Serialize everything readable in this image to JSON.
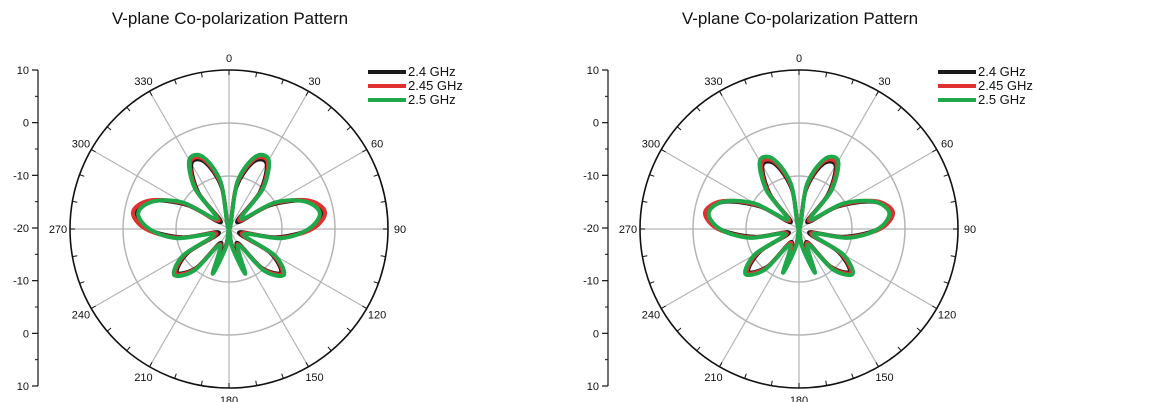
{
  "chart_data": [
    {
      "type": "polar-line",
      "title": "V-plane Co-polarization Pattern",
      "angle_ticks": [
        "0",
        "30",
        "60",
        "90",
        "120",
        "150",
        "180",
        "210",
        "240",
        "270",
        "300",
        "330"
      ],
      "radial_tick_labels": [
        "10",
        "0",
        "-10",
        "-20",
        "-10",
        "0",
        "10"
      ],
      "radial_range_db": [
        -20,
        10
      ],
      "grid": true,
      "legend_position": "top-right",
      "colors": {
        "2.4 GHz": "#1a1a1a",
        "2.45 GHz": "#e03030",
        "2.5 GHz": "#1fa84a"
      },
      "series": [
        {
          "name": "2.4 GHz",
          "angles": [
            0,
            10,
            20,
            30,
            40,
            50,
            60,
            70,
            80,
            90,
            100,
            110,
            120,
            130,
            140,
            150,
            160,
            170,
            180,
            190,
            200,
            210,
            220,
            230,
            240,
            250,
            260,
            270,
            280,
            290,
            300,
            310,
            320,
            330,
            340,
            350
          ],
          "gain_db": [
            -20,
            -12,
            -6.5,
            -5.8,
            -11,
            -18,
            -11,
            -4.5,
            -2,
            -4.6,
            -11,
            -18,
            -11,
            -7.2,
            -10.5,
            -17,
            -11.5,
            -17,
            -20,
            -17,
            -11.5,
            -17,
            -10.5,
            -7.2,
            -11,
            -18,
            -11,
            -4.6,
            -2,
            -4.5,
            -11,
            -18,
            -11,
            -5.8,
            -6.5,
            -12
          ]
        },
        {
          "name": "2.45 GHz",
          "angles": [
            0,
            10,
            20,
            30,
            40,
            50,
            60,
            70,
            80,
            90,
            100,
            110,
            120,
            130,
            140,
            150,
            160,
            170,
            180,
            190,
            200,
            210,
            220,
            230,
            240,
            250,
            260,
            270,
            280,
            290,
            300,
            310,
            320,
            330,
            340,
            350
          ],
          "gain_db": [
            -20,
            -11.5,
            -6,
            -5.4,
            -10.5,
            -17.5,
            -10.5,
            -4.2,
            -1.6,
            -4.3,
            -10.5,
            -17.5,
            -10.5,
            -6.9,
            -10.2,
            -16.7,
            -11.2,
            -16.7,
            -20,
            -16.7,
            -11.2,
            -16.7,
            -10.2,
            -6.9,
            -10.5,
            -17.5,
            -10.5,
            -4.3,
            -1.6,
            -4.2,
            -10.5,
            -17.5,
            -10.5,
            -5.4,
            -6,
            -11.5
          ]
        },
        {
          "name": "2.5 GHz",
          "angles": [
            0,
            10,
            20,
            30,
            40,
            50,
            60,
            70,
            80,
            90,
            100,
            110,
            120,
            130,
            140,
            150,
            160,
            170,
            180,
            190,
            200,
            210,
            220,
            230,
            240,
            250,
            260,
            270,
            280,
            290,
            300,
            310,
            320,
            330,
            340,
            350
          ],
          "gain_db": [
            -20,
            -11,
            -5.5,
            -5,
            -10,
            -17,
            -10,
            -4.8,
            -2.6,
            -5,
            -10,
            -17,
            -10,
            -6.5,
            -9.8,
            -16.5,
            -11,
            -16.5,
            -20,
            -16.5,
            -11,
            -16.5,
            -9.8,
            -6.5,
            -10,
            -17,
            -10,
            -5,
            -2.6,
            -4.8,
            -10,
            -17,
            -10,
            -5,
            -5.5,
            -11
          ]
        }
      ]
    },
    {
      "type": "polar-line",
      "title": "V-plane Co-polarization Pattern",
      "angle_ticks": [
        "0",
        "30",
        "60",
        "90",
        "120",
        "150",
        "180",
        "210",
        "240",
        "270",
        "300",
        "330"
      ],
      "radial_tick_labels": [
        "10",
        "0",
        "-10",
        "-20",
        "-10",
        "0",
        "10"
      ],
      "radial_range_db": [
        -20,
        10
      ],
      "grid": true,
      "legend_position": "top-right",
      "colors": {
        "2.4 GHz": "#1a1a1a",
        "2.45 GHz": "#e03030",
        "2.5 GHz": "#1fa84a"
      },
      "series": [
        {
          "name": "2.4 GHz",
          "angles": [
            0,
            10,
            20,
            30,
            40,
            50,
            60,
            70,
            80,
            90,
            100,
            110,
            120,
            130,
            140,
            150,
            160,
            170,
            180,
            190,
            200,
            210,
            220,
            230,
            240,
            250,
            260,
            270,
            280,
            290,
            300,
            310,
            320,
            330,
            340,
            350
          ],
          "gain_db": [
            -20,
            -12.5,
            -7,
            -6.2,
            -11.5,
            -18,
            -11.5,
            -5,
            -2.3,
            -5,
            -11.5,
            -18,
            -11.5,
            -7.5,
            -10.8,
            -17.2,
            -11.8,
            -17.2,
            -20,
            -17.2,
            -11.8,
            -17.2,
            -10.8,
            -7.5,
            -11.5,
            -18,
            -11.5,
            -5,
            -2.3,
            -5,
            -11.5,
            -18,
            -11.5,
            -6.2,
            -7,
            -12.5
          ]
        },
        {
          "name": "2.45 GHz",
          "angles": [
            0,
            10,
            20,
            30,
            40,
            50,
            60,
            70,
            80,
            90,
            100,
            110,
            120,
            130,
            140,
            150,
            160,
            170,
            180,
            190,
            200,
            210,
            220,
            230,
            240,
            250,
            260,
            270,
            280,
            290,
            300,
            310,
            320,
            330,
            340,
            350
          ],
          "gain_db": [
            -20,
            -12,
            -6.5,
            -5.8,
            -11,
            -17.6,
            -11,
            -4.6,
            -2,
            -4.7,
            -11,
            -17.6,
            -11,
            -7.2,
            -10.5,
            -17,
            -11.5,
            -17,
            -20,
            -17,
            -11.5,
            -17,
            -10.5,
            -7.2,
            -11,
            -17.6,
            -11,
            -4.7,
            -2,
            -4.6,
            -11,
            -17.6,
            -11,
            -5.8,
            -6.5,
            -12
          ]
        },
        {
          "name": "2.5 GHz",
          "angles": [
            0,
            10,
            20,
            30,
            40,
            50,
            60,
            70,
            80,
            90,
            100,
            110,
            120,
            130,
            140,
            150,
            160,
            170,
            180,
            190,
            200,
            210,
            220,
            230,
            240,
            250,
            260,
            270,
            280,
            290,
            300,
            310,
            320,
            330,
            340,
            350
          ],
          "gain_db": [
            -20,
            -11.5,
            -6,
            -5.2,
            -10.4,
            -17.2,
            -10.4,
            -4.9,
            -2.7,
            -5.1,
            -10.4,
            -17.2,
            -10.4,
            -6.8,
            -10,
            -16.6,
            -11.2,
            -16.6,
            -20,
            -16.6,
            -11.2,
            -16.6,
            -10,
            -6.8,
            -10.4,
            -17.2,
            -10.4,
            -5.1,
            -2.7,
            -4.9,
            -10.4,
            -17.2,
            -10.4,
            -5.2,
            -6,
            -11.5
          ]
        }
      ]
    }
  ]
}
